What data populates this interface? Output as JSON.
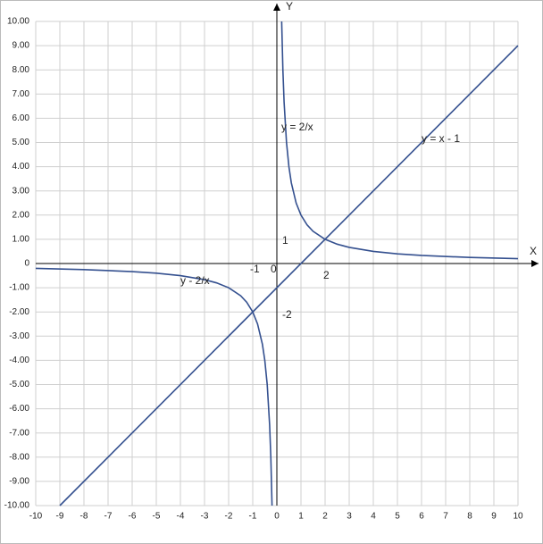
{
  "chart_data": {
    "type": "line",
    "xlabel": "X",
    "ylabel": "Y",
    "xlim": [
      -10,
      10
    ],
    "ylim": [
      -10,
      10
    ],
    "xticks": [
      -10,
      -9,
      -8,
      -7,
      -6,
      -5,
      -4,
      -3,
      -2,
      -1,
      0,
      1,
      2,
      3,
      4,
      5,
      6,
      7,
      8,
      9,
      10
    ],
    "yticks": [
      {
        "value": 10,
        "label": "10.00"
      },
      {
        "value": 9,
        "label": "9.00"
      },
      {
        "value": 8,
        "label": "8.00"
      },
      {
        "value": 7,
        "label": "7.00"
      },
      {
        "value": 6,
        "label": "6.00"
      },
      {
        "value": 5,
        "label": "5.00"
      },
      {
        "value": 4,
        "label": "4.00"
      },
      {
        "value": 3,
        "label": "3.00"
      },
      {
        "value": 2,
        "label": "2.00"
      },
      {
        "value": 1,
        "label": "1.00"
      },
      {
        "value": 0,
        "label": "0"
      },
      {
        "value": -1,
        "label": "-1.00"
      },
      {
        "value": -2,
        "label": "-2.00"
      },
      {
        "value": -3,
        "label": "-3.00"
      },
      {
        "value": -4,
        "label": "-4.00"
      },
      {
        "value": -5,
        "label": "-5.00"
      },
      {
        "value": -6,
        "label": "-6.00"
      },
      {
        "value": -7,
        "label": "-7.00"
      },
      {
        "value": -8,
        "label": "-8.00"
      },
      {
        "value": -9,
        "label": "-9.00"
      },
      {
        "value": -10,
        "label": "-10.00"
      }
    ],
    "grid": true,
    "series": [
      {
        "color": "#34508f",
        "x": [
          -10,
          -8,
          -6,
          -5,
          -4,
          -3,
          -2.5,
          -2,
          -1.5,
          -1.25,
          -1,
          -0.8,
          -0.6,
          -0.5,
          -0.4,
          -0.3,
          -0.25,
          -0.2,
          0,
          0.2,
          0.25,
          0.3,
          0.4,
          0.5,
          0.6,
          0.8,
          1,
          1.25,
          1.5,
          2,
          2.5,
          3,
          4,
          5,
          6,
          8,
          10
        ],
        "values": [
          -0.2,
          -0.25,
          -0.333,
          -0.4,
          -0.5,
          -0.667,
          -0.8,
          -1,
          -1.333,
          -1.6,
          -2,
          -2.5,
          -3.333,
          -4,
          -5,
          -6.667,
          -8,
          -10,
          null,
          10,
          8,
          6.667,
          5,
          4,
          3.333,
          2.5,
          2,
          1.6,
          1.333,
          1,
          0.8,
          0.667,
          0.5,
          0.4,
          0.333,
          0.25,
          0.2
        ]
      },
      {
        "color": "#34508f",
        "x": [
          -9,
          10
        ],
        "values": [
          -10,
          9
        ]
      }
    ],
    "annotations": [
      "y = 2/x",
      "y = x - 1",
      "y - 2/x",
      "-1",
      "0",
      "1",
      "2",
      "-2"
    ]
  }
}
